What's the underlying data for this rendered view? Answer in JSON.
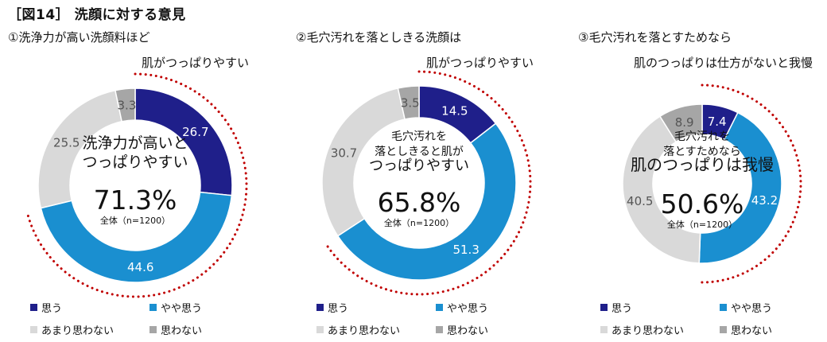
{
  "figure_title": "［図14］ 洗顔に対する意見",
  "colors": {
    "omou": "#1f1f8a",
    "yaya_omou": "#1a8fd0",
    "amari": "#d9d9d9",
    "omowanai": "#a6a6a6",
    "dotted_ring": "#c00000"
  },
  "legend": {
    "omou": "思う",
    "yaya_omou": "やや思う",
    "amari": "あまり思わない",
    "omowanai": "思わない"
  },
  "chart_data": [
    {
      "type": "donut",
      "title_line1": "①洗浄力が高い洗顔料ほど",
      "title_line2": "肌がつっぱりやすい",
      "center_lines": [
        "洗浄力が高いと",
        "つっぱりやすい"
      ],
      "center_value": "71.3%",
      "center_note": "全体（n=1200）",
      "categories": [
        "思う",
        "やや思う",
        "あまり思わない",
        "思わない"
      ],
      "values": [
        26.7,
        44.6,
        25.5,
        3.3
      ],
      "highlight_sum": 71.3
    },
    {
      "type": "donut",
      "title_line1": "②毛穴汚れを落としきる洗顔は",
      "title_line2": "肌がつっぱりやすい",
      "center_lines": [
        "毛穴汚れを",
        "落としきると肌が",
        "つっぱりやすい"
      ],
      "center_value": "65.8%",
      "center_note": "全体（n=1200）",
      "categories": [
        "思う",
        "やや思う",
        "あまり思わない",
        "思わない"
      ],
      "values": [
        14.5,
        51.3,
        30.7,
        3.5
      ],
      "highlight_sum": 65.8
    },
    {
      "type": "donut",
      "title_line1": "③毛穴汚れを落とすためなら",
      "title_line2": "肌のつっぱりは仕方がないと我慢",
      "center_lines": [
        "毛穴汚れを",
        "落とすためなら",
        "肌のつっぱりは我慢"
      ],
      "center_value": "50.6%",
      "center_note": "全体（n=1200）",
      "categories": [
        "思う",
        "やや思う",
        "あまり思わない",
        "思わない"
      ],
      "values": [
        7.4,
        43.2,
        40.5,
        8.9
      ],
      "highlight_sum": 50.6
    }
  ]
}
